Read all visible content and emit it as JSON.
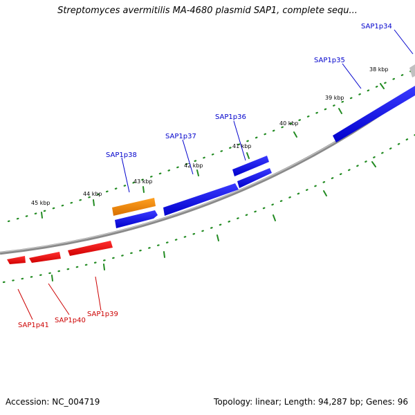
{
  "title": "Streptomyces avermitilis MA-4680 plasmid SAP1, complete sequ...",
  "footer": {
    "accession": "Accession: NC_004719",
    "summary": "Topology: linear; Length: 94,287 bp; Genes: 96"
  },
  "colors": {
    "forward_gene": "#0000e6",
    "reverse_gene": "#e60000",
    "rrna_like": "#f08c00",
    "backbone": "#808080",
    "ticks": "#228b22",
    "label_blue": "#0000cc",
    "label_red": "#cc0000"
  },
  "scale_labels": [
    "38 kbp",
    "39 kbp",
    "40 kbp",
    "41 kbp",
    "42 kbp",
    "43 kbp",
    "44 kbp",
    "45 kbp"
  ],
  "genes": [
    {
      "name": "SAP1p34",
      "strand": "forward"
    },
    {
      "name": "SAP1p35",
      "strand": "forward"
    },
    {
      "name": "SAP1p36",
      "strand": "forward"
    },
    {
      "name": "SAP1p37",
      "strand": "forward"
    },
    {
      "name": "SAP1p38",
      "strand": "forward"
    },
    {
      "name": "SAP1p39",
      "strand": "reverse"
    },
    {
      "name": "SAP1p40",
      "strand": "reverse"
    },
    {
      "name": "SAP1p41",
      "strand": "reverse"
    }
  ]
}
